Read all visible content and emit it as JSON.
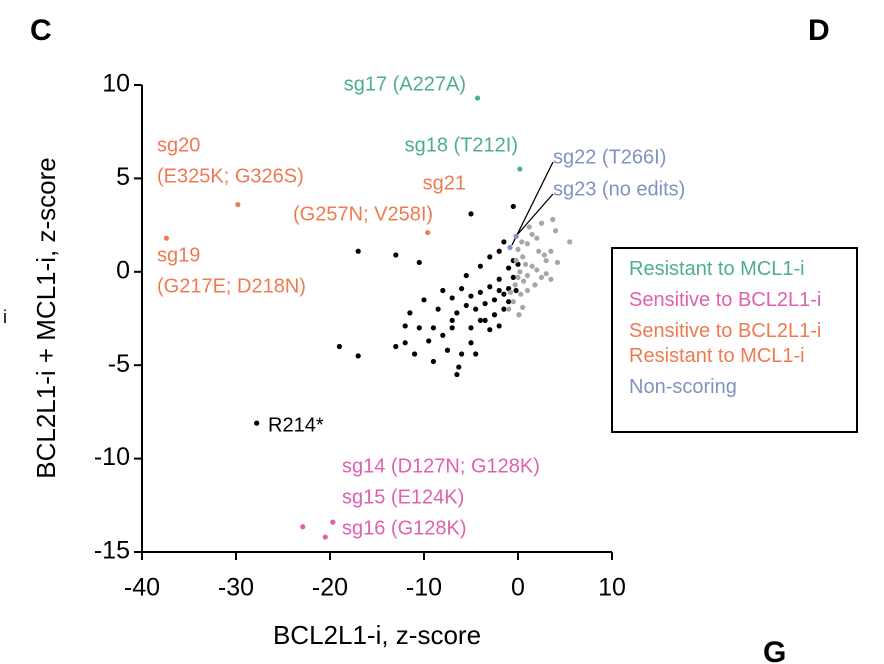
{
  "panel_labels": [
    "C",
    "D",
    "G",
    "i"
  ],
  "chart_data": {
    "type": "scatter",
    "xlabel": "BCL2L1-i, z-score",
    "ylabel": "BCL2L1-i + MCL1-i, z-score",
    "xlim": [
      -40,
      10
    ],
    "ylim": [
      -15,
      10
    ],
    "xticks": [
      -40,
      -30,
      -20,
      -10,
      0,
      10
    ],
    "yticks": [
      -15,
      -10,
      -5,
      0,
      5,
      10
    ],
    "series": [
      {
        "name": "Resistant to MCL1-i",
        "color": "#4caf8a",
        "x": [
          -4.3,
          0.2
        ],
        "y": [
          9.3,
          5.5
        ]
      },
      {
        "name": "Sensitive to BCL2L1-i",
        "color": "#e060b0",
        "x": [
          -22.9,
          -20.5,
          -19.7
        ],
        "y": [
          -13.65,
          -14.2,
          -13.4
        ]
      },
      {
        "name": "Sensitive to BCL2L1-i\nResistant to MCL1-i",
        "color": "#f07a50",
        "x": [
          -29.8,
          -9.6,
          -37.4
        ],
        "y": [
          3.6,
          2.1,
          1.8
        ]
      },
      {
        "name": "Non-scoring",
        "color": "#7f93c0",
        "x": [
          -0.85,
          -0.2
        ],
        "y": [
          1.3,
          1.9
        ]
      },
      {
        "color": "#000000",
        "x": [
          -27.8,
          -17,
          -13,
          -10.5,
          -5,
          -0.5,
          -19,
          -17,
          -12,
          -12,
          -11,
          -10.5,
          -9.5,
          -8,
          -7.5,
          -6.5,
          -6.3,
          -6,
          -5,
          -4.5,
          -3,
          -2,
          -7,
          -6.5,
          -5.5,
          -5,
          -4.5,
          -4,
          -3.5,
          -3,
          -2.5,
          -2,
          -1.5,
          -1,
          -1,
          -0.5,
          -0.5,
          -8.5,
          -9,
          -10,
          -7,
          -6,
          -5.5,
          -4,
          -3,
          -2,
          -1.5,
          -3.5,
          -2.5,
          -5,
          -8,
          -11.5,
          -9,
          -7,
          -4,
          -1.5,
          -2,
          -1,
          0,
          -0.2,
          -13
        ],
        "y": [
          -8.1,
          1.1,
          0.9,
          0.5,
          3.1,
          3.5,
          -4,
          -4.5,
          -2.9,
          -3.8,
          -4.4,
          -3,
          -3.7,
          -3.4,
          -4.2,
          -5.5,
          -5.1,
          -4.4,
          -3.8,
          -4.4,
          -3.1,
          -2.9,
          -2.6,
          -2.2,
          -1.8,
          -1.3,
          -2,
          -1.1,
          -1.7,
          -0.8,
          -1.5,
          -0.4,
          -1.2,
          0.2,
          -0.9,
          0.6,
          -0.3,
          -2,
          -3,
          -1.5,
          -1.4,
          -0.9,
          -0.2,
          0.3,
          0.8,
          1.1,
          1.6,
          -2.6,
          -2.3,
          -3,
          -1,
          -2.2,
          -4.8,
          -3,
          -2.6,
          -2,
          -1,
          -1.6,
          0.4,
          -1,
          -4
        ]
      },
      {
        "color": "#a6a6a6",
        "x": [
          0,
          0.5,
          1,
          1.5,
          2,
          2.5,
          3,
          3.5,
          4,
          5.5,
          0.2,
          0.6,
          1,
          1.5,
          2,
          2.5,
          3,
          3.5,
          -0.3,
          0.3,
          -0.5,
          0.5,
          -1,
          1,
          1.8,
          0,
          0.8,
          -0.2,
          2.2,
          3.7,
          1.2,
          0.4,
          -0.8,
          0.1,
          2.8,
          4.2
        ],
        "y": [
          1.2,
          0.8,
          1.5,
          2,
          1.8,
          2.6,
          0.6,
          1.1,
          2.2,
          1.6,
          0,
          -0.5,
          -0.2,
          0.3,
          0.1,
          -0.3,
          -0.1,
          -0.4,
          -0.7,
          -1.2,
          -1.6,
          -1.9,
          -2,
          -1,
          -0.7,
          -0.3,
          0.4,
          0.6,
          1.1,
          2.8,
          2.4,
          1.6,
          -1.1,
          -2.3,
          0.9,
          0.5
        ]
      }
    ],
    "annotations": [
      {
        "text": "sg17 (A227A)",
        "color": "#4caf8a"
      },
      {
        "text": "sg18 (T212I)",
        "color": "#4caf8a"
      },
      {
        "text": "sg20",
        "color": "#f07a50"
      },
      {
        "text": "(E325K; G326S)",
        "color": "#f07a50"
      },
      {
        "text": "sg21",
        "color": "#f07a50"
      },
      {
        "text": "(G257N; V258I)",
        "color": "#f07a50"
      },
      {
        "text": "sg19",
        "color": "#f07a50"
      },
      {
        "text": "(G217E; D218N)",
        "color": "#f07a50"
      },
      {
        "text": "sg22 (T266I)",
        "color": "#7f93c0"
      },
      {
        "text": "sg23 (no edits)",
        "color": "#7f93c0"
      },
      {
        "text": "R214*",
        "color": "#000000"
      },
      {
        "text": "sg14 (D127N; G128K)",
        "color": "#e060b0"
      },
      {
        "text": "sg15 (E124K)",
        "color": "#e060b0"
      },
      {
        "text": "sg16 (G128K)",
        "color": "#e060b0"
      }
    ]
  }
}
